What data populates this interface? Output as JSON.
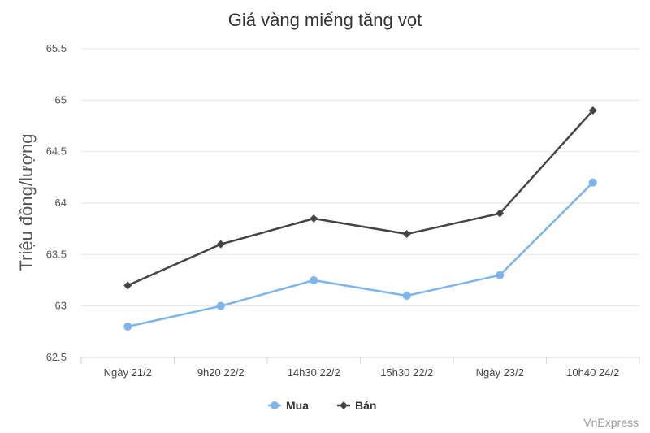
{
  "chart_data": {
    "type": "line",
    "title": "Giá vàng miếng tăng vọt",
    "xlabel": "",
    "ylabel": "Triệu đồng/lượng",
    "categories": [
      "Ngày 21/2",
      "9h20 22/2",
      "14h30 22/2",
      "15h30 22/2",
      "Ngày 23/2",
      "10h40 24/2"
    ],
    "ylim": [
      62.5,
      65.5
    ],
    "yticks": [
      "62.5",
      "63",
      "63.5",
      "64",
      "64.5",
      "65",
      "65.5"
    ],
    "grid": true,
    "legend_position": "bottom",
    "series": [
      {
        "name": "Mua",
        "color": "#7cb5ec",
        "marker": "circle",
        "values": [
          62.8,
          63.0,
          63.25,
          63.1,
          63.3,
          64.2
        ]
      },
      {
        "name": "Bán",
        "color": "#434348",
        "marker": "diamond",
        "values": [
          63.2,
          63.6,
          63.85,
          63.7,
          63.9,
          64.9
        ]
      }
    ]
  },
  "credit": "VnExpress"
}
